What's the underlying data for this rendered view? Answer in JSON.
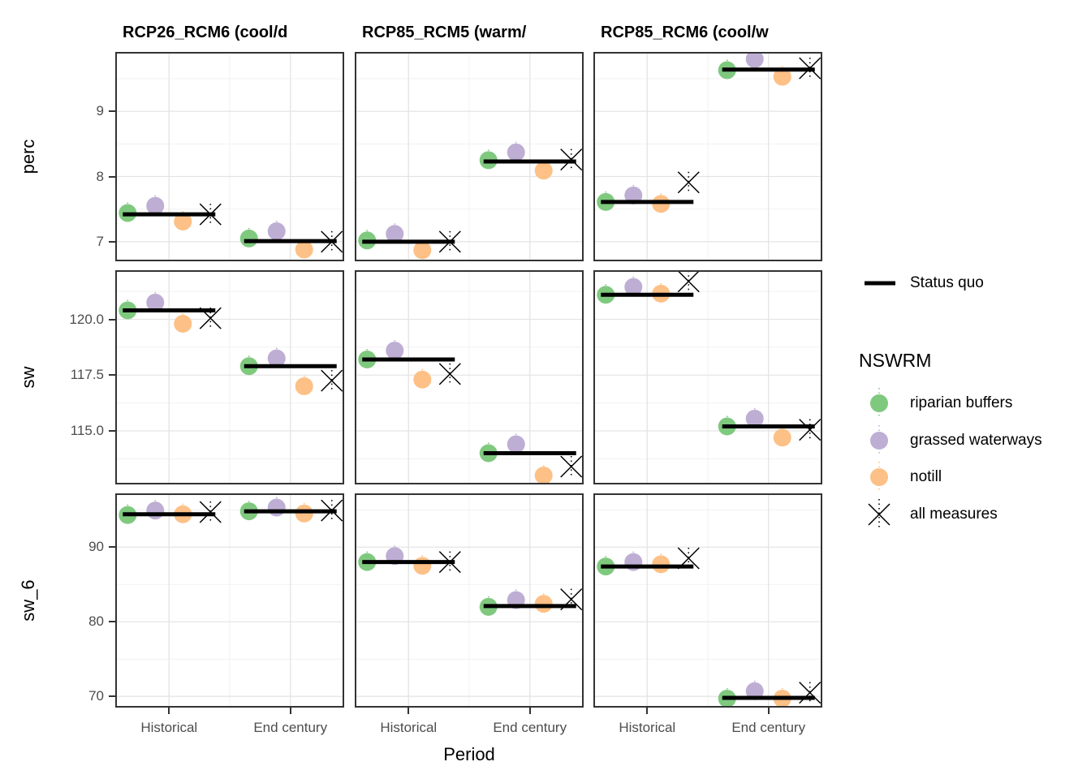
{
  "figure": {
    "legend": {
      "status_quo_label": "Status quo",
      "nswrm_title": "NSWRM",
      "items": [
        {
          "label": "riparian buffers",
          "color": "#7FC97F",
          "marker": "circle"
        },
        {
          "label": "grassed waterways",
          "color": "#BEAED4",
          "marker": "circle"
        },
        {
          "label": "notill",
          "color": "#FDC086",
          "marker": "circle"
        },
        {
          "label": "all measures",
          "color": "#000000",
          "marker": "x"
        }
      ]
    },
    "colors": {
      "status_quo_line": "#000000",
      "panel_border": "#333333",
      "grid_major": "#e4e4e4",
      "grid_minor": "#f1f1f1",
      "tick_text": "#4d4d4d"
    }
  },
  "chart_data": {
    "type": "scatter",
    "title": "",
    "xlabel": "Period",
    "facet_columns": [
      "RCP26_RCM6 (cool/d",
      "RCP85_RCM5 (warm/",
      "RCP85_RCM6 (cool/w"
    ],
    "facet_rows": [
      "perc",
      "sw",
      "sw_6"
    ],
    "x_categories": [
      "Historical",
      "End century"
    ],
    "series_order": [
      "riparian buffers",
      "grassed waterways",
      "notill",
      "all measures",
      "status quo"
    ],
    "y_axes": {
      "perc": {
        "ticks": [
          7,
          8,
          9
        ],
        "tick_labels": [
          "7",
          "8",
          "9"
        ],
        "ylim": [
          6.7,
          9.91
        ]
      },
      "sw": {
        "ticks": [
          115.0,
          117.5,
          120.0
        ],
        "tick_labels": [
          "115.0",
          "117.5",
          "120.0"
        ],
        "ylim": [
          112.6,
          122.2
        ]
      },
      "sw_6": {
        "ticks": [
          70,
          80,
          90
        ],
        "tick_labels": [
          "70",
          "80",
          "90"
        ],
        "ylim": [
          68.5,
          97.2
        ]
      }
    },
    "panels": [
      {
        "row": "perc",
        "col": "RCP26_RCM6 (cool/d",
        "groups": [
          {
            "period": "Historical",
            "riparian_buffers": 7.44,
            "grassed_waterways": 7.55,
            "notill": 7.31,
            "all_measures": 7.42,
            "status_quo": 7.42
          },
          {
            "period": "End century",
            "riparian_buffers": 7.05,
            "grassed_waterways": 7.16,
            "notill": 6.88,
            "all_measures": 7.0,
            "status_quo": 7.01
          }
        ]
      },
      {
        "row": "perc",
        "col": "RCP85_RCM5 (warm/",
        "groups": [
          {
            "period": "Historical",
            "riparian_buffers": 7.02,
            "grassed_waterways": 7.12,
            "notill": 6.87,
            "all_measures": 7.0,
            "status_quo": 7.0
          },
          {
            "period": "End century",
            "riparian_buffers": 8.25,
            "grassed_waterways": 8.37,
            "notill": 8.09,
            "all_measures": 8.26,
            "status_quo": 8.23
          }
        ]
      },
      {
        "row": "perc",
        "col": "RCP85_RCM6 (cool/w",
        "groups": [
          {
            "period": "Historical",
            "riparian_buffers": 7.61,
            "grassed_waterways": 7.71,
            "notill": 7.58,
            "all_measures": 7.91,
            "status_quo": 7.61
          },
          {
            "period": "End century",
            "riparian_buffers": 9.63,
            "grassed_waterways": 9.8,
            "notill": 9.53,
            "all_measures": 9.66,
            "status_quo": 9.64
          }
        ]
      },
      {
        "row": "sw",
        "col": "RCP26_RCM6 (cool/d",
        "groups": [
          {
            "period": "Historical",
            "riparian_buffers": 120.4,
            "grassed_waterways": 120.75,
            "notill": 119.8,
            "all_measures": 120.05,
            "status_quo": 120.4
          },
          {
            "period": "End century",
            "riparian_buffers": 117.9,
            "grassed_waterways": 118.25,
            "notill": 117.0,
            "all_measures": 117.25,
            "status_quo": 117.9
          }
        ]
      },
      {
        "row": "sw",
        "col": "RCP85_RCM5 (warm/",
        "groups": [
          {
            "period": "Historical",
            "riparian_buffers": 118.2,
            "grassed_waterways": 118.6,
            "notill": 117.3,
            "all_measures": 117.55,
            "status_quo": 118.2
          },
          {
            "period": "End century",
            "riparian_buffers": 114.0,
            "grassed_waterways": 114.4,
            "notill": 113.0,
            "all_measures": 113.4,
            "status_quo": 114.0
          }
        ]
      },
      {
        "row": "sw",
        "col": "RCP85_RCM6 (cool/w",
        "groups": [
          {
            "period": "Historical",
            "riparian_buffers": 121.1,
            "grassed_waterways": 121.45,
            "notill": 121.15,
            "all_measures": 121.7,
            "status_quo": 121.1
          },
          {
            "period": "End century",
            "riparian_buffers": 115.2,
            "grassed_waterways": 115.55,
            "notill": 114.7,
            "all_measures": 115.05,
            "status_quo": 115.2
          }
        ]
      },
      {
        "row": "sw_6",
        "col": "RCP26_RCM6 (cool/d",
        "groups": [
          {
            "period": "Historical",
            "riparian_buffers": 94.3,
            "grassed_waterways": 94.9,
            "notill": 94.4,
            "all_measures": 94.7,
            "status_quo": 94.4
          },
          {
            "period": "End century",
            "riparian_buffers": 94.8,
            "grassed_waterways": 95.3,
            "notill": 94.5,
            "all_measures": 94.9,
            "status_quo": 94.8
          }
        ]
      },
      {
        "row": "sw_6",
        "col": "RCP85_RCM5 (warm/",
        "groups": [
          {
            "period": "Historical",
            "riparian_buffers": 88.0,
            "grassed_waterways": 88.8,
            "notill": 87.5,
            "all_measures": 88.0,
            "status_quo": 88.0
          },
          {
            "period": "End century",
            "riparian_buffers": 82.0,
            "grassed_waterways": 82.9,
            "notill": 82.4,
            "all_measures": 83.0,
            "status_quo": 82.1
          }
        ]
      },
      {
        "row": "sw_6",
        "col": "RCP85_RCM6 (cool/w",
        "groups": [
          {
            "period": "Historical",
            "riparian_buffers": 87.4,
            "grassed_waterways": 88.0,
            "notill": 87.7,
            "all_measures": 88.5,
            "status_quo": 87.4
          },
          {
            "period": "End century",
            "riparian_buffers": 69.7,
            "grassed_waterways": 70.7,
            "notill": 69.7,
            "all_measures": 70.5,
            "status_quo": 69.8
          }
        ]
      }
    ]
  }
}
